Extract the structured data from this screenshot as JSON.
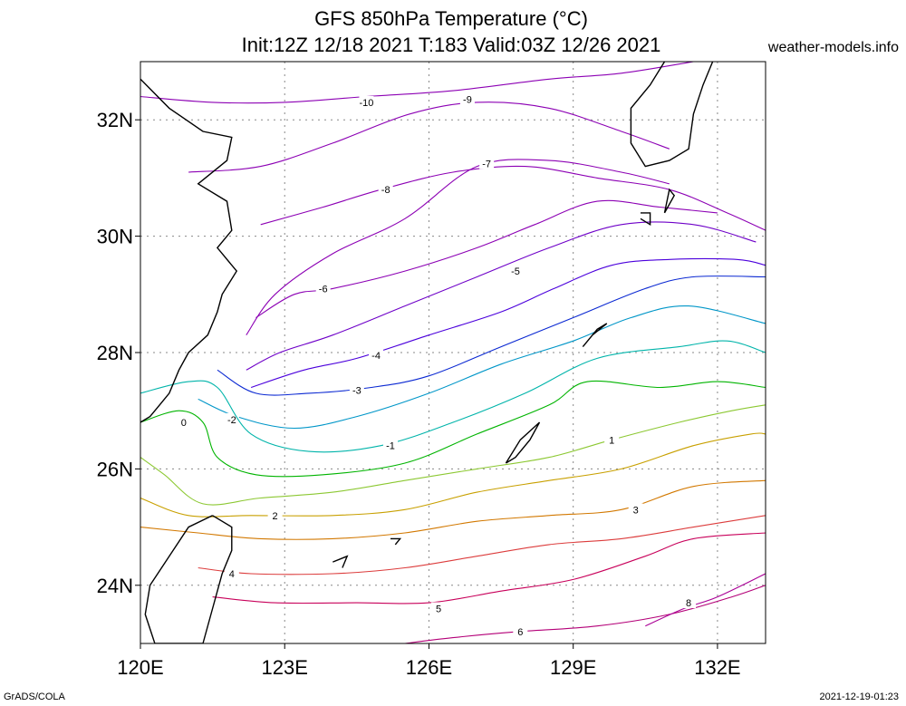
{
  "title": {
    "line1": "GFS 850hPa Temperature (°C)",
    "line2": "Init:12Z 12/18 2021 T:183 Valid:03Z 12/26 2021"
  },
  "site": "weather-models.info",
  "credit_left": "GrADS/COLA",
  "credit_right": "2021-12-19-01:23",
  "map": {
    "lon_range": [
      120,
      133
    ],
    "lat_range": [
      23,
      33
    ],
    "lon_ticks": [
      {
        "value": 120,
        "label": "120E"
      },
      {
        "value": 123,
        "label": "123E"
      },
      {
        "value": 126,
        "label": "126E"
      },
      {
        "value": 129,
        "label": "129E"
      },
      {
        "value": 132,
        "label": "132E"
      }
    ],
    "lat_ticks": [
      {
        "value": 24,
        "label": "24N"
      },
      {
        "value": 26,
        "label": "26N"
      },
      {
        "value": 28,
        "label": "28N"
      },
      {
        "value": 30,
        "label": "30N"
      },
      {
        "value": 32,
        "label": "32N"
      }
    ],
    "grid": true
  },
  "contours": [
    {
      "level": -10,
      "label": "-10",
      "color": "#8c00b4",
      "pts": [
        [
          120,
          32.4
        ],
        [
          121.5,
          32.3
        ],
        [
          123,
          32.3
        ],
        [
          124.7,
          32.4
        ],
        [
          126.5,
          32.5
        ],
        [
          128.5,
          32.7
        ],
        [
          130,
          32.8
        ],
        [
          131.5,
          33
        ]
      ],
      "label_at": [
        124.7,
        32.3
      ]
    },
    {
      "level": -9,
      "label": "-9",
      "color": "#8c00b4",
      "pts": [
        [
          121,
          31.1
        ],
        [
          122.5,
          31.2
        ],
        [
          124,
          31.6
        ],
        [
          125.6,
          32.1
        ],
        [
          127,
          32.3
        ],
        [
          128.5,
          32.2
        ],
        [
          130,
          31.8
        ],
        [
          131,
          31.5
        ]
      ],
      "label_at": [
        126.8,
        32.35
      ]
    },
    {
      "level": -8,
      "label": "-8",
      "color": "#8c00b4",
      "pts": [
        [
          122.5,
          30.2
        ],
        [
          123.8,
          30.5
        ],
        [
          125,
          30.8
        ],
        [
          126.5,
          31.1
        ],
        [
          128,
          31.2
        ],
        [
          129.5,
          31
        ],
        [
          131,
          30.8
        ],
        [
          132.2,
          30.4
        ],
        [
          133,
          30.1
        ]
      ],
      "label_at": [
        125.1,
        30.8
      ]
    },
    {
      "level": -7,
      "label": "-7",
      "color": "#8c00b4",
      "pts": [
        [
          122.2,
          28.3
        ],
        [
          122.8,
          29
        ],
        [
          124,
          29.7
        ],
        [
          125.5,
          30.3
        ],
        [
          127,
          31.2
        ],
        [
          128.5,
          31.3
        ],
        [
          130,
          31.1
        ],
        [
          131,
          30.9
        ]
      ],
      "label_at": [
        127.2,
        31.25
      ]
    },
    {
      "level": -6,
      "label": "-6",
      "color": "#8c00b4",
      "pts": [
        [
          122.4,
          28.6
        ],
        [
          123.2,
          29
        ],
        [
          124,
          29.1
        ],
        [
          125.5,
          29.4
        ],
        [
          127,
          29.8
        ],
        [
          128.2,
          30.2
        ],
        [
          129.5,
          30.6
        ],
        [
          130.8,
          30.5
        ],
        [
          132,
          30.4
        ]
      ],
      "label_at": [
        123.8,
        29.1
      ]
    },
    {
      "level": -5,
      "label": "-5",
      "color": "#6e00c8",
      "pts": [
        [
          122.2,
          27.7
        ],
        [
          122.9,
          28
        ],
        [
          124,
          28.3
        ],
        [
          125.5,
          28.8
        ],
        [
          127,
          29.3
        ],
        [
          128.5,
          29.8
        ],
        [
          130,
          30.2
        ],
        [
          131.5,
          30.2
        ],
        [
          132.8,
          29.9
        ]
      ],
      "label_at": [
        127.8,
        29.4
      ]
    },
    {
      "level": -4,
      "label": "-4",
      "color": "#4b00dc",
      "pts": [
        [
          122.3,
          27.4
        ],
        [
          123.4,
          27.7
        ],
        [
          124.5,
          27.9
        ],
        [
          126,
          28.3
        ],
        [
          127.5,
          28.7
        ],
        [
          128.6,
          29.1
        ],
        [
          129.8,
          29.5
        ],
        [
          131,
          29.6
        ],
        [
          132.4,
          29.6
        ],
        [
          133,
          29.5
        ]
      ],
      "label_at": [
        124.9,
        27.95
      ]
    },
    {
      "level": -3,
      "label": "-3",
      "color": "#0a28d2",
      "pts": [
        [
          121.6,
          27.7
        ],
        [
          122.4,
          27.3
        ],
        [
          123.5,
          27.3
        ],
        [
          124.8,
          27.4
        ],
        [
          126,
          27.6
        ],
        [
          127.5,
          28.1
        ],
        [
          129,
          28.6
        ],
        [
          130.5,
          29.1
        ],
        [
          131.5,
          29.3
        ],
        [
          133,
          29.3
        ]
      ],
      "label_at": [
        124.5,
        27.35
      ]
    },
    {
      "level": -2,
      "label": "-2",
      "color": "#0096c8",
      "pts": [
        [
          121.2,
          27.2
        ],
        [
          122,
          26.9
        ],
        [
          123.2,
          26.7
        ],
        [
          124.5,
          26.9
        ],
        [
          126,
          27.3
        ],
        [
          127.5,
          27.8
        ],
        [
          129,
          28.2
        ],
        [
          130.2,
          28.6
        ],
        [
          131.4,
          28.8
        ],
        [
          133,
          28.5
        ]
      ],
      "label_at": [
        121.9,
        26.85
      ]
    },
    {
      "level": -1,
      "label": "-1",
      "color": "#00b4aa",
      "pts": [
        [
          120,
          27.3
        ],
        [
          121,
          27.5
        ],
        [
          121.6,
          27.4
        ],
        [
          122.3,
          26.6
        ],
        [
          123.5,
          26.3
        ],
        [
          125,
          26.4
        ],
        [
          126.5,
          26.8
        ],
        [
          128,
          27.3
        ],
        [
          129.5,
          27.9
        ],
        [
          131.2,
          28.1
        ],
        [
          132.2,
          28.2
        ],
        [
          133,
          28
        ]
      ],
      "label_at": [
        125.2,
        26.4
      ]
    },
    {
      "level": 0,
      "label": "0",
      "color": "#00b400",
      "pts": [
        [
          120,
          26.8
        ],
        [
          120.8,
          27
        ],
        [
          121.3,
          26.8
        ],
        [
          121.6,
          26.2
        ],
        [
          122.4,
          25.9
        ],
        [
          123.8,
          25.9
        ],
        [
          125.5,
          26.1
        ],
        [
          127,
          26.6
        ],
        [
          128.5,
          27.1
        ],
        [
          129.3,
          27.5
        ],
        [
          130.8,
          27.4
        ],
        [
          132,
          27.5
        ],
        [
          133,
          27.4
        ]
      ],
      "label_at": [
        120.9,
        26.8
      ]
    },
    {
      "level": 1,
      "label": "1",
      "color": "#8cc832",
      "pts": [
        [
          120,
          26.2
        ],
        [
          120.5,
          25.9
        ],
        [
          121.3,
          25.4
        ],
        [
          122.5,
          25.5
        ],
        [
          124,
          25.6
        ],
        [
          125.5,
          25.8
        ],
        [
          127,
          26
        ],
        [
          128.5,
          26.2
        ],
        [
          129.8,
          26.5
        ],
        [
          131.2,
          26.8
        ],
        [
          132.3,
          27
        ],
        [
          133,
          27.1
        ]
      ],
      "label_at": [
        129.8,
        26.5
      ]
    },
    {
      "level": 2,
      "label": "2",
      "color": "#c8a000",
      "pts": [
        [
          120,
          25.5
        ],
        [
          121,
          25.2
        ],
        [
          122.3,
          25.2
        ],
        [
          124,
          25.2
        ],
        [
          125.5,
          25.3
        ],
        [
          127,
          25.6
        ],
        [
          128.5,
          25.8
        ],
        [
          130,
          26
        ],
        [
          131.5,
          26.4
        ],
        [
          132.7,
          26.6
        ],
        [
          133,
          26.6
        ]
      ],
      "label_at": [
        122.8,
        25.2
      ]
    },
    {
      "level": 3,
      "label": "3",
      "color": "#d27800",
      "pts": [
        [
          120,
          25
        ],
        [
          121.2,
          24.9
        ],
        [
          122.5,
          24.8
        ],
        [
          124,
          24.8
        ],
        [
          125.5,
          24.9
        ],
        [
          127,
          25.1
        ],
        [
          128.5,
          25.2
        ],
        [
          130,
          25.3
        ],
        [
          131.5,
          25.7
        ],
        [
          133,
          25.8
        ]
      ],
      "label_at": [
        130.3,
        25.3
      ]
    },
    {
      "level": 4,
      "label": "4",
      "color": "#dc3c3c",
      "pts": [
        [
          121.2,
          24.3
        ],
        [
          122.3,
          24.2
        ],
        [
          124,
          24.2
        ],
        [
          125.5,
          24.3
        ],
        [
          127,
          24.5
        ],
        [
          128.5,
          24.7
        ],
        [
          130,
          24.8
        ],
        [
          131.5,
          25
        ],
        [
          133,
          25.2
        ]
      ],
      "label_at": [
        121.9,
        24.2
      ]
    },
    {
      "level": 5,
      "label": "5",
      "color": "#c8005a",
      "pts": [
        [
          121.5,
          23.8
        ],
        [
          122.8,
          23.7
        ],
        [
          124.5,
          23.7
        ],
        [
          126,
          23.7
        ],
        [
          127.5,
          23.9
        ],
        [
          129,
          24.1
        ],
        [
          130.5,
          24.5
        ],
        [
          131.5,
          24.8
        ],
        [
          133,
          24.9
        ]
      ],
      "label_at": [
        126.2,
        23.6
      ]
    },
    {
      "level": 6,
      "label": "6",
      "color": "#b40078",
      "pts": [
        [
          125.5,
          23
        ],
        [
          126.5,
          23.1
        ],
        [
          127.8,
          23.2
        ],
        [
          129.5,
          23.3
        ],
        [
          131,
          23.5
        ],
        [
          132.3,
          23.8
        ],
        [
          133,
          24
        ]
      ],
      "label_at": [
        127.9,
        23.2
      ]
    },
    {
      "level": 8,
      "label": "8",
      "color": "#aa0096",
      "pts": [
        [
          130.5,
          23.3
        ],
        [
          131.3,
          23.6
        ],
        [
          132,
          23.8
        ],
        [
          133,
          24.2
        ]
      ],
      "label_at": [
        131.4,
        23.7
      ]
    }
  ],
  "coast": [
    {
      "name": "china-coast",
      "pts": [
        [
          120,
          32.7
        ],
        [
          120.6,
          32.2
        ],
        [
          121.3,
          31.8
        ],
        [
          121.9,
          31.7
        ],
        [
          121.8,
          31.3
        ],
        [
          121.2,
          30.9
        ],
        [
          121.8,
          30.6
        ],
        [
          121.9,
          30.1
        ],
        [
          121.6,
          29.8
        ],
        [
          122,
          29.4
        ],
        [
          121.7,
          29
        ],
        [
          121.6,
          28.7
        ],
        [
          121.4,
          28.3
        ],
        [
          121,
          28
        ],
        [
          120.8,
          27.7
        ],
        [
          120.6,
          27.3
        ],
        [
          120.4,
          27.1
        ],
        [
          120.2,
          26.9
        ],
        [
          120,
          26.8
        ]
      ]
    },
    {
      "name": "taiwan",
      "pts": [
        [
          121.5,
          25.2
        ],
        [
          121.9,
          25
        ],
        [
          121.9,
          24.6
        ],
        [
          121.7,
          24.2
        ],
        [
          121.5,
          23.6
        ],
        [
          121.3,
          23.0
        ],
        [
          120.3,
          23.0
        ],
        [
          120.1,
          23.5
        ],
        [
          120.2,
          24.0
        ],
        [
          120.6,
          24.5
        ],
        [
          121.0,
          25.0
        ],
        [
          121.5,
          25.2
        ]
      ]
    },
    {
      "name": "okinawa",
      "pts": [
        [
          127.6,
          26.1
        ],
        [
          127.9,
          26.5
        ],
        [
          128.3,
          26.8
        ],
        [
          128.1,
          26.5
        ],
        [
          127.8,
          26.2
        ],
        [
          127.6,
          26.1
        ]
      ]
    },
    {
      "name": "amami",
      "pts": [
        [
          129.2,
          28.1
        ],
        [
          129.5,
          28.4
        ],
        [
          129.7,
          28.5
        ],
        [
          129.4,
          28.3
        ],
        [
          129.2,
          28.1
        ]
      ]
    },
    {
      "name": "kyushu",
      "pts": [
        [
          130.9,
          33
        ],
        [
          130.6,
          32.6
        ],
        [
          130.2,
          32.2
        ],
        [
          130.2,
          31.6
        ],
        [
          130.5,
          31.2
        ],
        [
          131.0,
          31.3
        ],
        [
          131.4,
          31.5
        ],
        [
          131.5,
          32.1
        ],
        [
          131.7,
          32.6
        ],
        [
          131.9,
          33
        ]
      ]
    },
    {
      "name": "tanegashima",
      "pts": [
        [
          130.9,
          30.4
        ],
        [
          131.0,
          30.8
        ],
        [
          131.1,
          30.7
        ],
        [
          130.9,
          30.4
        ]
      ]
    },
    {
      "name": "yakushima",
      "pts": [
        [
          130.4,
          30.4
        ],
        [
          130.6,
          30.4
        ],
        [
          130.6,
          30.2
        ],
        [
          130.4,
          30.3
        ]
      ]
    },
    {
      "name": "miyako",
      "pts": [
        [
          125.2,
          24.8
        ],
        [
          125.4,
          24.8
        ],
        [
          125.3,
          24.7
        ]
      ]
    },
    {
      "name": "ishigaki",
      "pts": [
        [
          124.0,
          24.4
        ],
        [
          124.3,
          24.5
        ],
        [
          124.2,
          24.3
        ]
      ]
    }
  ]
}
